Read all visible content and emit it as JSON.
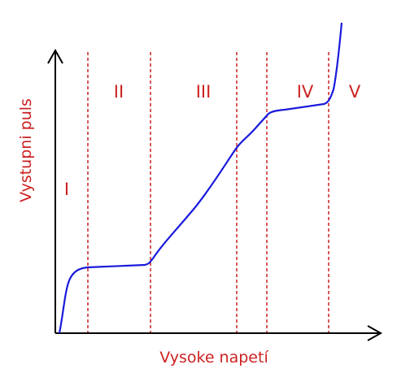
{
  "axes": {
    "y_label": "Vystupni puls",
    "x_label": "Vysoke napetí"
  },
  "regions": [
    {
      "label": "I"
    },
    {
      "label": "II"
    },
    {
      "label": "III"
    },
    {
      "label": "IV"
    },
    {
      "label": "V"
    }
  ]
}
